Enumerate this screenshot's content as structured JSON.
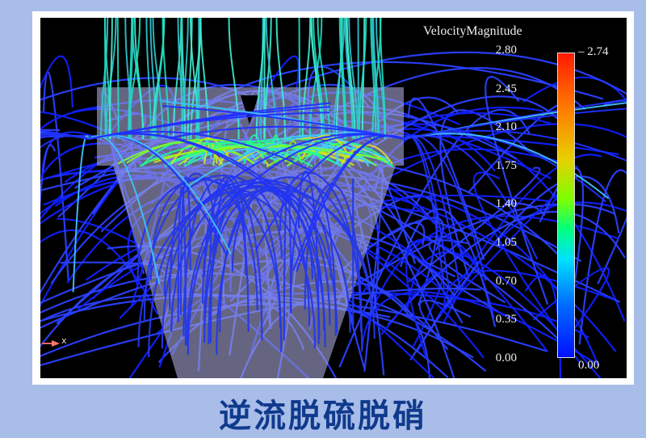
{
  "colorbar": {
    "title": "VelocityMagnitude",
    "ticks": [
      "2.80",
      "2.45",
      "2.10",
      "1.75",
      "1.40",
      "1.05",
      "0.70",
      "0.35",
      "0.00"
    ],
    "max_label": "2.74",
    "min_label": "0.00",
    "colors": [
      "#0010ff",
      "#00e0ff",
      "#00ff80",
      "#e8d000",
      "#ff1a00"
    ]
  },
  "axis_label": "x",
  "caption": "逆流脱硫脱硝"
}
